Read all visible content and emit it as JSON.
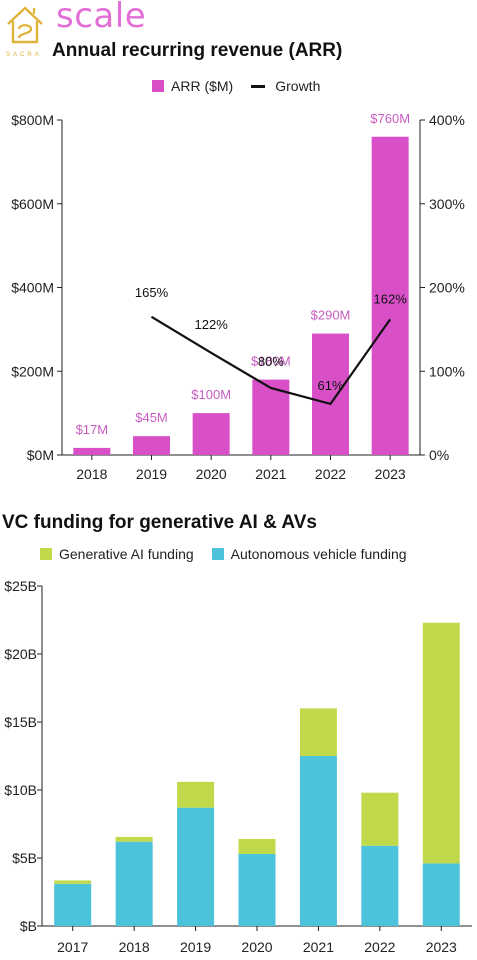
{
  "brand": {
    "wordmark": "scale",
    "sub": "SACRA",
    "icon": "sacra-house-logo-icon"
  },
  "colors": {
    "arr": "#d94fc8",
    "arr_label": "#c65cc0",
    "growth": "#111111",
    "gen_ai": "#bfd94a",
    "av": "#4dc3db"
  },
  "chart_data": [
    {
      "type": "bar",
      "title": "Annual recurring revenue (ARR)",
      "categories": [
        "2018",
        "2019",
        "2020",
        "2021",
        "2022",
        "2023"
      ],
      "legend_position": "top-center",
      "legend": [
        {
          "label": "ARR ($M)",
          "kind": "bar"
        },
        {
          "label": "Growth",
          "kind": "line"
        }
      ],
      "series": [
        {
          "name": "ARR ($M)",
          "type": "bar",
          "axis": "left",
          "values": [
            17,
            45,
            100,
            180,
            290,
            760
          ],
          "labels": [
            "$17M",
            "$45M",
            "$100M",
            "$180M",
            "$290M",
            "$760M"
          ]
        },
        {
          "name": "Growth",
          "type": "line",
          "axis": "right",
          "values": [
            null,
            165,
            122,
            80,
            61,
            162
          ],
          "labels": [
            "",
            "165%",
            "122%",
            "80%",
            "61%",
            "162%"
          ]
        }
      ],
      "ylim": [
        0,
        800
      ],
      "yticks": [
        "$0M",
        "$200M",
        "$400M",
        "$600M",
        "$800M"
      ],
      "y2lim": [
        0,
        400
      ],
      "y2ticks": [
        "0%",
        "100%",
        "200%",
        "300%",
        "400%"
      ],
      "grid": false
    },
    {
      "type": "bar",
      "stacked": true,
      "title": "VC funding for generative AI & AVs",
      "categories": [
        "2017",
        "2018",
        "2019",
        "2020",
        "2021",
        "2022",
        "2023"
      ],
      "legend_position": "top-left",
      "legend": [
        {
          "label": "Generative AI funding"
        },
        {
          "label": "Autonomous vehicle funding"
        }
      ],
      "series": [
        {
          "name": "Autonomous vehicle funding",
          "values": [
            3.1,
            6.2,
            8.7,
            5.3,
            12.5,
            5.9,
            4.6
          ]
        },
        {
          "name": "Generative AI funding",
          "values": [
            0.25,
            0.35,
            1.9,
            1.1,
            3.5,
            3.9,
            17.7
          ]
        }
      ],
      "ylim": [
        0,
        25
      ],
      "yticks": [
        "$B",
        "$5B",
        "$10B",
        "$15B",
        "$20B",
        "$25B"
      ],
      "grid": false
    }
  ]
}
